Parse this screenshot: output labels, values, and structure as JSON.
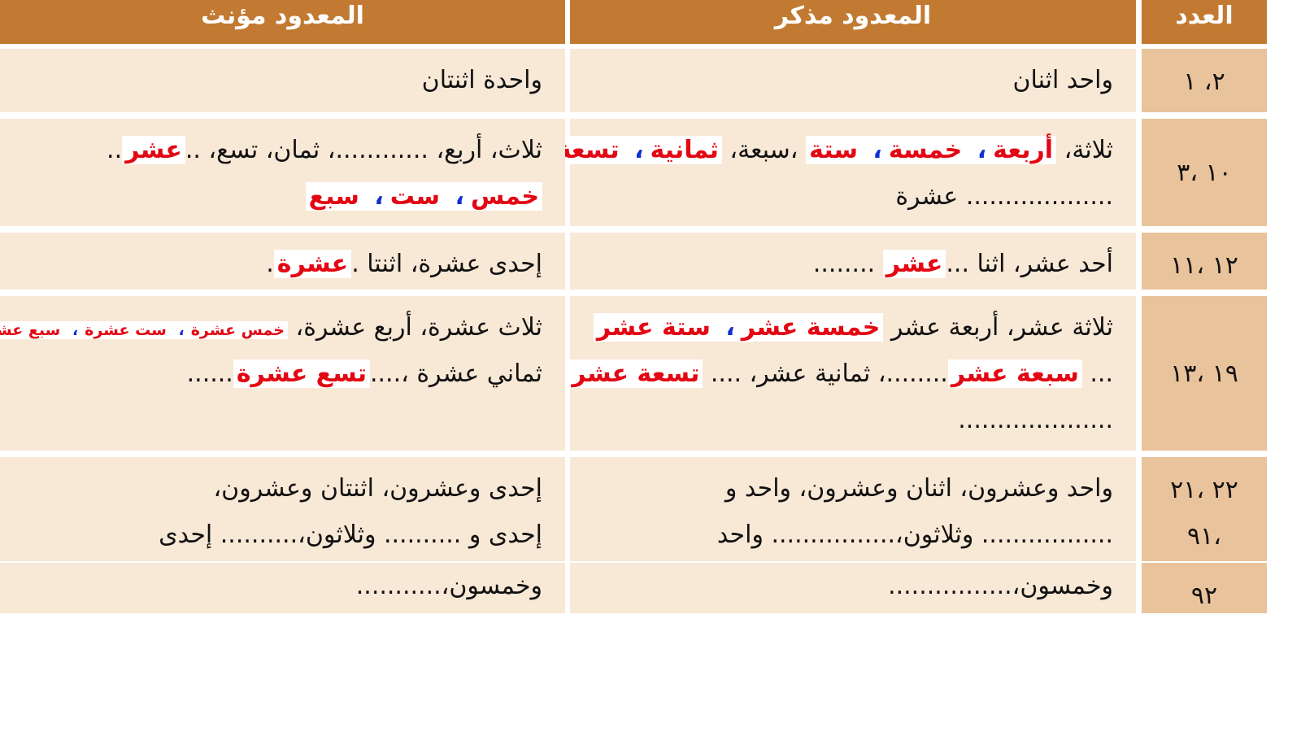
{
  "colors": {
    "header": "#c27a32",
    "cell": "#f8e8d6",
    "number_cell": "#e9c39b",
    "highlight_text": "#e30613",
    "comma_accent": "#1030d0"
  },
  "headers": {
    "feminine": "المعدود مؤنث",
    "masculine": "المعدود مذكر",
    "number": "العدد"
  },
  "rows": [
    {
      "number": [
        "٢، ١"
      ],
      "masculine": [
        [
          {
            "t": "واحد اثنان"
          }
        ]
      ],
      "feminine": [
        [
          {
            "t": "واحدة اثنتان"
          }
        ]
      ]
    },
    {
      "number": [
        "١٠ ،٣"
      ],
      "masculine": [
        [
          {
            "t": "ثلاثة، "
          },
          {
            "t": "أربعة",
            "hl": 1
          },
          {
            "t": "،",
            "hl": 1,
            "blue": 1
          },
          {
            "t": " خمسة",
            "hl": 1
          },
          {
            "t": "،",
            "hl": 1,
            "blue": 1
          },
          {
            "t": " ستة",
            "hl": 1
          },
          {
            "t": " ،سبعة، "
          },
          {
            "t": "ثمانية",
            "hl": 1
          },
          {
            "t": "،",
            "hl": 1,
            "blue": 1
          },
          {
            "t": " تسعة",
            "hl": 1
          },
          {
            "t": "،"
          }
        ],
        [
          {
            "t": "................... عشرة"
          }
        ]
      ],
      "feminine": [
        [
          {
            "t": "ثلاث، أربع، ............، ثمان، تسع، .."
          },
          {
            "t": "عشر",
            "hl": 1
          },
          {
            "t": ".."
          }
        ],
        [
          {
            "t": "خمس",
            "hl": 1
          },
          {
            "t": "،",
            "hl": 1,
            "blue": 1
          },
          {
            "t": " ست",
            "hl": 1
          },
          {
            "t": "،",
            "hl": 1,
            "blue": 1
          },
          {
            "t": " سبع",
            "hl": 1
          }
        ]
      ]
    },
    {
      "number": [
        "١٢ ،١١"
      ],
      "masculine": [
        [
          {
            "t": "أحد عشر، اثنا ..."
          },
          {
            "t": "عشر",
            "hl": 1
          },
          {
            "t": " ........"
          }
        ]
      ],
      "feminine": [
        [
          {
            "t": "إحدى عشرة، اثنتا ."
          },
          {
            "t": "عشرة",
            "hl": 1
          },
          {
            "t": "."
          }
        ]
      ]
    },
    {
      "number": [
        "١٩ ،١٣"
      ],
      "masculine": [
        [
          {
            "t": "ثلاثة عشر، أربعة عشر "
          },
          {
            "t": "خمسة عشر",
            "hl": 1
          },
          {
            "t": "،",
            "hl": 1,
            "blue": 1
          },
          {
            "t": " ستة عشر",
            "hl": 1
          }
        ],
        [
          {
            "t": "... "
          },
          {
            "t": "سبعة عشر",
            "hl": 1
          },
          {
            "t": "........، ثمانية عشر، .... "
          },
          {
            "t": "تسعة عشر",
            "hl": 1
          }
        ],
        [
          {
            "t": "...................."
          }
        ]
      ],
      "feminine": [
        [
          {
            "t": "ثلاث عشرة، أربع عشرة، "
          },
          {
            "t": "خمس عشرة",
            "hl": 1,
            "small": 1
          },
          {
            "t": "،",
            "hl": 1,
            "blue": 1,
            "small": 1
          },
          {
            "t": " ست عشرة",
            "hl": 1,
            "small": 1
          },
          {
            "t": "،",
            "hl": 1,
            "blue": 1,
            "small": 1
          },
          {
            "t": " سبع عشرة",
            "hl": 1,
            "small": 1
          }
        ],
        [
          {
            "t": "ثماني عشرة ،...."
          },
          {
            "t": "تسع عشرة",
            "hl": 1
          },
          {
            "t": "......"
          }
        ]
      ]
    },
    {
      "number": [
        "٢٢ ،٢١",
        "،٩١"
      ],
      "masculine": [
        [
          {
            "t": "واحد وعشرون، اثنان وعشرون، واحد و"
          }
        ],
        [
          {
            "t": "................. وثلاثون،................ واحد"
          }
        ]
      ],
      "feminine": [
        [
          {
            "t": "إحدى وعشرون، اثنتان وعشرون،"
          }
        ],
        [
          {
            "t": "إحدى و .......... وثلاثون،.......... إحدى"
          }
        ]
      ]
    },
    {
      "number": [
        "٩٢"
      ],
      "masculine": [
        [
          {
            "t": "وخمسون،................"
          }
        ]
      ],
      "feminine": [
        [
          {
            "t": "وخمسون،..........."
          }
        ]
      ]
    }
  ]
}
